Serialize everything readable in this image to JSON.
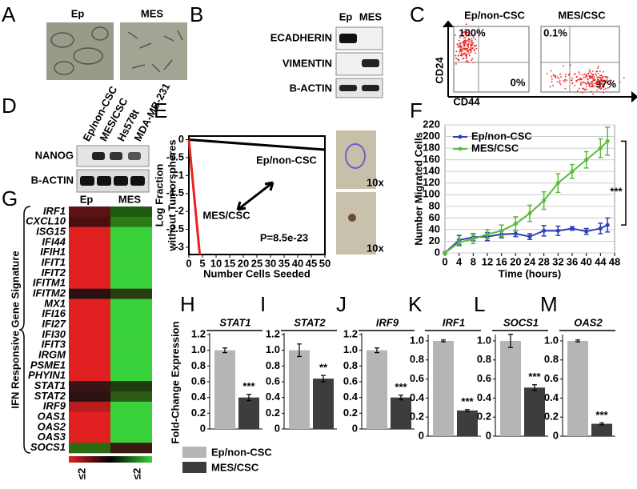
{
  "panel_labels": [
    "A",
    "B",
    "C",
    "D",
    "E",
    "F",
    "G",
    "H",
    "I",
    "J",
    "K",
    "L",
    "M"
  ],
  "panel_a": {
    "labels": [
      "Ep",
      "MES"
    ]
  },
  "panel_b": {
    "columns": [
      "Ep",
      "MES"
    ],
    "rows": [
      "ECADHERIN",
      "VIMENTIN",
      "B-ACTIN"
    ]
  },
  "panel_c": {
    "plots": [
      {
        "title": "Ep/non-CSC",
        "top_left": "100%",
        "bottom_right": "0%"
      },
      {
        "title": "MES/CSC",
        "top_left": "0.1%",
        "bottom_right": "97%"
      }
    ],
    "y_label": "CD24",
    "x_label": "CD44"
  },
  "panel_d": {
    "columns": [
      "Ep/non-CSC",
      "MES/CSC",
      "Hs578t",
      "MDA-MB-231"
    ],
    "rows": [
      "NANOG",
      "B-ACTIN"
    ]
  },
  "panel_e_images": [
    "10x",
    "10x"
  ],
  "panel_g": {
    "y_label": "IFN Responsive Gene Signature",
    "columns": [
      "Ep",
      "MES"
    ],
    "genes": [
      "IRF1",
      "CXCL10",
      "ISG15",
      "IFI44",
      "IFIH1",
      "IFIT1",
      "IFIT2",
      "IFITM1",
      "IFITM2",
      "MX1",
      "IFI16",
      "IFI27",
      "IFI30",
      "IFIT3",
      "IRGM",
      "PSME1",
      "PHYIN1",
      "STAT1",
      "STAT2",
      "IRF9",
      "OAS1",
      "OAS2",
      "OAS3",
      "SOCS1"
    ],
    "ep_colors": [
      "#5c1212",
      "#4a0f0f",
      "#e02020",
      "#e02020",
      "#e02020",
      "#e02020",
      "#e02020",
      "#e02020",
      "#2a1010",
      "#e02020",
      "#e02020",
      "#e02020",
      "#e02020",
      "#e02020",
      "#e02020",
      "#e02020",
      "#e02020",
      "#3a1414",
      "#2a1212",
      "#b81c1c",
      "#e02020",
      "#e02020",
      "#e02020",
      "#2e6a12"
    ],
    "mes_colors": [
      "#1f5a12",
      "#2a7a16",
      "#3ad23a",
      "#3ad23a",
      "#3ad23a",
      "#3ad23a",
      "#3ad23a",
      "#3ad23a",
      "#2a3a12",
      "#3ad23a",
      "#3ad23a",
      "#3ad23a",
      "#3ad23a",
      "#3ad23a",
      "#3ad23a",
      "#3ad23a",
      "#3ad23a",
      "#1e3a10",
      "#2a5a14",
      "#3ad23a",
      "#3ad23a",
      "#3ad23a",
      "#3ad23a",
      "#3a1a10"
    ],
    "scale_labels": [
      "≤2",
      "≤2"
    ]
  },
  "bar_legend": {
    "ylabel": "Fold-Change Expression",
    "series": [
      {
        "name": "Ep/non-CSC",
        "color": "#b5b5b5"
      },
      {
        "name": "MES/CSC",
        "color": "#3d3d3d"
      }
    ]
  },
  "chart_data": [
    {
      "type": "line",
      "xlabel": "Number Cells Seeded",
      "ylabel": [
        "Log Fraction",
        "without Tumorspheres"
      ],
      "xlim": [
        0,
        50
      ],
      "xticks": [
        0,
        5,
        10,
        15,
        20,
        25,
        30,
        35,
        40,
        45,
        50
      ],
      "ylim": [
        -3.2,
        0.1
      ],
      "yticks": [
        0,
        -0.5,
        -1,
        -1.5,
        -2,
        -2.5,
        -3
      ],
      "series": [
        {
          "name": "Ep/non-CSC",
          "color": "#000000",
          "x": [
            0,
            50
          ],
          "values": [
            0,
            -0.28
          ]
        },
        {
          "name": "MES/CSC",
          "color": "#e8231f",
          "x": [
            0,
            4
          ],
          "values": [
            0,
            -3.2
          ]
        }
      ],
      "annotation": "P=8.5e-23"
    },
    {
      "type": "line",
      "xlabel": "Time (hours)",
      "ylabel": "Number Migrated Cells",
      "xlim": [
        0,
        48
      ],
      "xticks": [
        0,
        4,
        8,
        12,
        16,
        20,
        24,
        28,
        32,
        36,
        40,
        44,
        48
      ],
      "ylim": [
        0,
        220
      ],
      "yticks": [
        0,
        20,
        40,
        60,
        80,
        100,
        120,
        140,
        160,
        180,
        200,
        220
      ],
      "series": [
        {
          "name": "Ep/non-CSC",
          "color": "#2e3fb8",
          "x": [
            0,
            4,
            8,
            12,
            16,
            20,
            24,
            28,
            32,
            36,
            40,
            44,
            46
          ],
          "values": [
            0,
            22,
            27,
            28,
            32,
            33,
            28,
            38,
            38,
            42,
            37,
            42,
            48
          ],
          "errors": [
            2,
            8,
            6,
            7,
            6,
            5,
            5,
            9,
            8,
            3,
            5,
            9,
            12
          ]
        },
        {
          "name": "MES/CSC",
          "color": "#5dba3b",
          "x": [
            0,
            4,
            8,
            12,
            16,
            20,
            24,
            28,
            32,
            36,
            40,
            44,
            46
          ],
          "values": [
            0,
            18,
            24,
            32,
            38,
            50,
            68,
            90,
            120,
            140,
            160,
            180,
            192
          ],
          "errors": [
            2,
            6,
            8,
            8,
            10,
            12,
            14,
            15,
            16,
            12,
            14,
            16,
            24
          ]
        }
      ],
      "significance": "***"
    },
    {
      "type": "bar",
      "title": "STAT1",
      "values": [
        1.0,
        0.4
      ],
      "errors": [
        0.03,
        0.04
      ],
      "ylim": [
        0,
        1.2
      ],
      "yticks": [
        0,
        0.2,
        0.4,
        0.6,
        0.8,
        {
          "value": 1,
          "label": "1.0"
        },
        1.2
      ],
      "significance": "***"
    },
    {
      "type": "bar",
      "title": "STAT2",
      "values": [
        1.0,
        0.64
      ],
      "errors": [
        0.08,
        0.04
      ],
      "ylim": [
        0,
        1.2
      ],
      "yticks": [
        0,
        0.2,
        0.4,
        0.6,
        0.8,
        {
          "value": 1,
          "label": "1.0"
        },
        1.2
      ],
      "significance": "**"
    },
    {
      "type": "bar",
      "title": "IRF9",
      "values": [
        1.0,
        0.4
      ],
      "errors": [
        0.03,
        0.03
      ],
      "ylim": [
        0,
        1.2
      ],
      "yticks": [
        0,
        0.2,
        0.4,
        0.6,
        0.8,
        {
          "value": 1,
          "label": "1.0"
        },
        1.2
      ],
      "significance": "***"
    },
    {
      "type": "bar",
      "title": "IRF1",
      "values": [
        1.0,
        0.27
      ],
      "errors": [
        0.01,
        0.01
      ],
      "ylim": [
        0,
        1.05
      ],
      "yticks": [
        0,
        0.2,
        0.4,
        0.6,
        0.8,
        {
          "value": 1,
          "label": "1.0"
        }
      ],
      "significance": "***"
    },
    {
      "type": "bar",
      "title": "SOCS1",
      "values": [
        1.0,
        0.51
      ],
      "errors": [
        0.07,
        0.03
      ],
      "ylim": [
        0,
        1.05
      ],
      "yticks": [
        0,
        0.2,
        0.4,
        0.6,
        0.8,
        {
          "value": 1,
          "label": "1.0"
        }
      ],
      "significance": "***"
    },
    {
      "type": "bar",
      "title": "OAS2",
      "values": [
        1.0,
        0.13
      ],
      "errors": [
        0.01,
        0.01
      ],
      "ylim": [
        0,
        1.05
      ],
      "yticks": [
        0,
        0.2,
        0.4,
        0.6,
        0.8,
        {
          "value": 1,
          "label": "1.0"
        }
      ],
      "significance": "***"
    }
  ]
}
